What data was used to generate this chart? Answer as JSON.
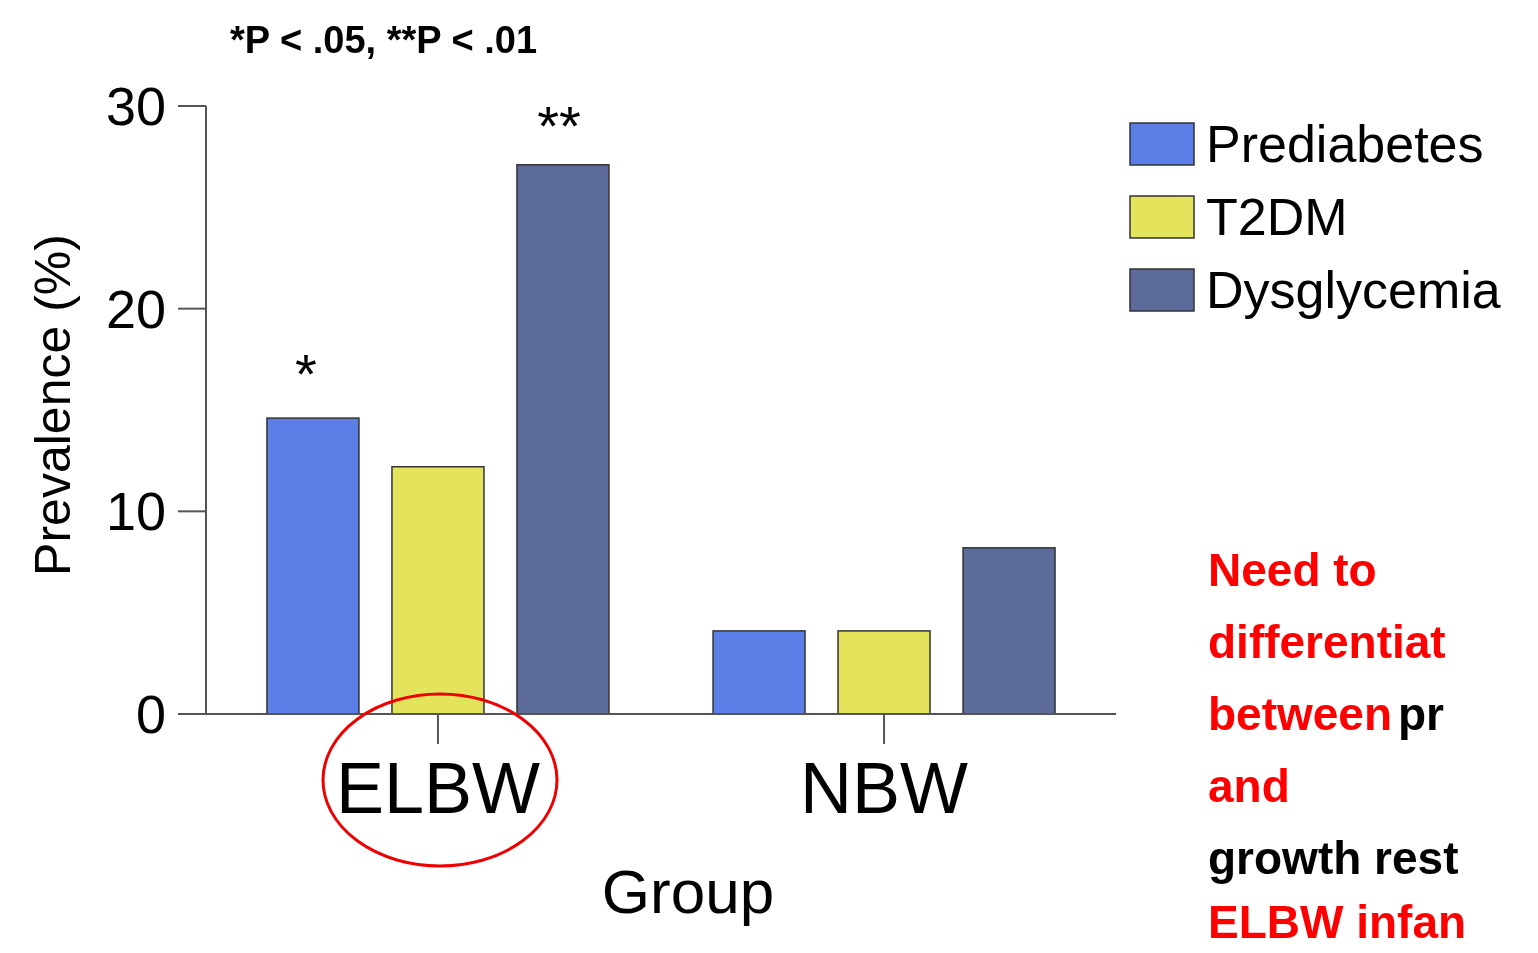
{
  "chart_data": {
    "type": "bar",
    "xlabel": "Group",
    "ylabel": "Prevalence (%)",
    "categories": [
      "ELBW",
      "NBW"
    ],
    "series": [
      {
        "name": "Prediabetes",
        "color": "#5b7fe6",
        "values": [
          14.6,
          4.1
        ]
      },
      {
        "name": "T2DM",
        "color": "#e3e35c",
        "values": [
          12.2,
          4.1
        ]
      },
      {
        "name": "Dysglycemia",
        "color": "#5c6a9a",
        "values": [
          27.1,
          8.2
        ]
      }
    ],
    "ylim": [
      0,
      30
    ],
    "yticks": [
      0,
      10,
      20,
      30
    ],
    "grid": false,
    "legend": "top right",
    "annotations": [
      "*P < .05, **P < .01",
      "*",
      "**",
      "Need to",
      "differentiat",
      "between",
      "pr",
      "and",
      "growth rest",
      "ELBW infan"
    ]
  }
}
